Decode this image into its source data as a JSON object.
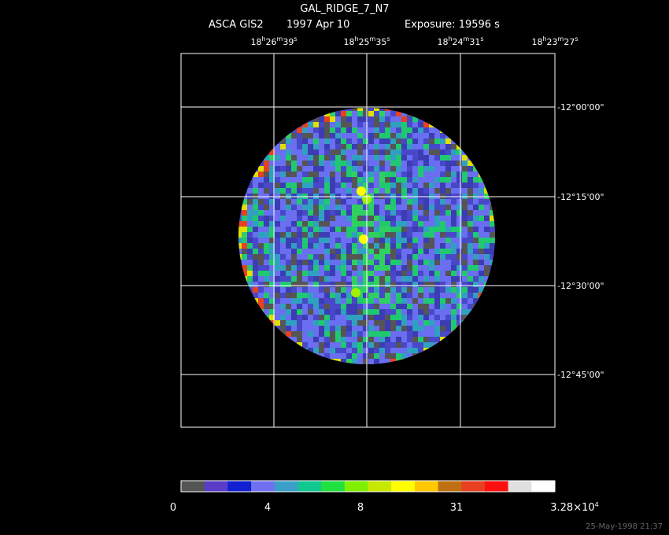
{
  "header": {
    "title": "GAL_RIDGE_7_N7",
    "instrument": "ASCA GIS2",
    "date": "1997 Apr 10",
    "exposure": "Exposure: 19596 s"
  },
  "ra_labels": [
    [
      "18",
      "h",
      "26",
      "m",
      "39",
      "s"
    ],
    [
      "18",
      "h",
      "25",
      "m",
      "35",
      "s"
    ],
    [
      "18",
      "h",
      "24",
      "m",
      "31",
      "s"
    ],
    [
      "18",
      "h",
      "23",
      "m",
      "27",
      "s"
    ]
  ],
  "dec_labels": [
    "-12°00'00\"",
    "-12°15'00\"",
    "-12°30'00\"",
    "-12°45'00\""
  ],
  "colorbar_labels": [
    [
      "0"
    ],
    [
      "4"
    ],
    [
      "8"
    ],
    [
      "31"
    ],
    [
      "3.28×10",
      "4"
    ]
  ],
  "footer": "25-May-1998 21:37"
}
